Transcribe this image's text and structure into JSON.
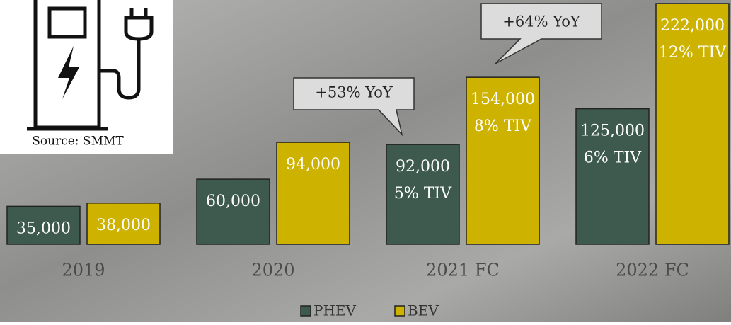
{
  "chart_data": {
    "type": "bar",
    "categories": [
      "2019",
      "2020",
      "2021 FC",
      "2022 FC"
    ],
    "series": [
      {
        "name": "PHEV",
        "color": "#3e5a4f",
        "values": [
          35000,
          60000,
          92000,
          125000
        ],
        "value_labels": [
          "35,000",
          "60,000",
          "92,000",
          "125,000"
        ],
        "share_labels": [
          null,
          null,
          "5% TIV",
          "6% TIV"
        ]
      },
      {
        "name": "BEV",
        "color": "#ceb200",
        "values": [
          38000,
          94000,
          154000,
          222000
        ],
        "value_labels": [
          "38,000",
          "94,000",
          "154,000",
          "222,000"
        ],
        "share_labels": [
          null,
          null,
          "8% TIV",
          "12% TIV"
        ]
      }
    ],
    "ylim": [
      0,
      222000
    ],
    "annotations": [
      "+53% YoY",
      "+64% YoY"
    ],
    "source": "Source: SMMT",
    "legend": "bottom"
  }
}
